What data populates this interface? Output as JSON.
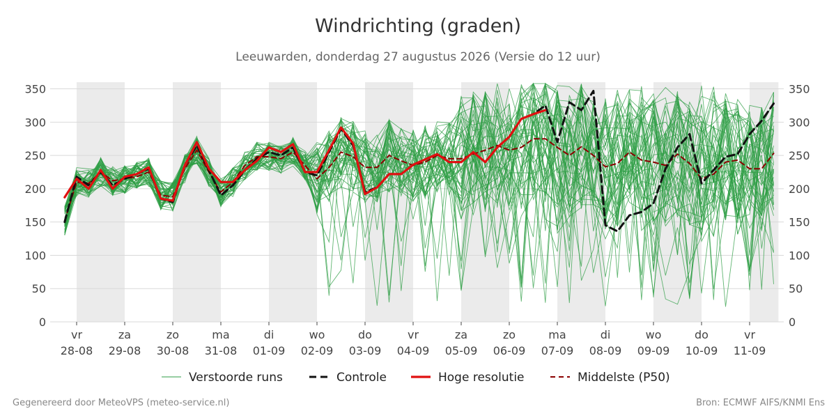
{
  "title": "Windrichting (graden)",
  "subtitle": "Leeuwarden, donderdag 27 augustus 2026 (Versie do 12 uur)",
  "footer_left": "Gegenereerd door MeteoVPS (meteo-service.nl)",
  "footer_right": "Bron: ECMWF AIFS/KNMI Ens",
  "colors": {
    "ensemble": "#2e9e44",
    "control": "#111111",
    "hires": "#e01010",
    "median": "#8b0000",
    "weekend_band": "#ebebeb",
    "grid": "#d9d9d9",
    "text": "#444444"
  },
  "chart_data": {
    "type": "line",
    "ylim": [
      0,
      360
    ],
    "y_ticks": [
      0,
      50,
      100,
      150,
      200,
      250,
      300,
      350
    ],
    "x_start_day": -0.25,
    "x_end_day": 14.6,
    "x_ticks": [
      {
        "day": 0,
        "dow": "vr",
        "date": "28-08"
      },
      {
        "day": 1,
        "dow": "za",
        "date": "29-08"
      },
      {
        "day": 2,
        "dow": "zo",
        "date": "30-08"
      },
      {
        "day": 3,
        "dow": "ma",
        "date": "31-08"
      },
      {
        "day": 4,
        "dow": "di",
        "date": "01-09"
      },
      {
        "day": 5,
        "dow": "wo",
        "date": "02-09"
      },
      {
        "day": 6,
        "dow": "do",
        "date": "03-09"
      },
      {
        "day": 7,
        "dow": "vr",
        "date": "04-09"
      },
      {
        "day": 8,
        "dow": "za",
        "date": "05-09"
      },
      {
        "day": 9,
        "dow": "zo",
        "date": "06-09"
      },
      {
        "day": 10,
        "dow": "ma",
        "date": "07-09"
      },
      {
        "day": 11,
        "dow": "di",
        "date": "08-09"
      },
      {
        "day": 12,
        "dow": "wo",
        "date": "09-09"
      },
      {
        "day": 13,
        "dow": "do",
        "date": "10-09"
      },
      {
        "day": 14,
        "dow": "vr",
        "date": "11-09"
      }
    ],
    "shaded_bands": [
      [
        0,
        1
      ],
      [
        2,
        3
      ],
      [
        4,
        5
      ],
      [
        6,
        7
      ],
      [
        8,
        9
      ],
      [
        10,
        11
      ],
      [
        12,
        13
      ],
      [
        14,
        14.6
      ]
    ],
    "legend": [
      {
        "key": "ensemble",
        "label": "Verstoorde runs",
        "style": "thin"
      },
      {
        "key": "control",
        "label": "Controle",
        "style": "dashed-thick"
      },
      {
        "key": "hires",
        "label": "Hoge resolutie",
        "style": "solid-thick"
      },
      {
        "key": "median",
        "label": "Middelste (P50)",
        "style": "dashed"
      }
    ],
    "legend_position": "bottom",
    "ensemble_member_count": 50,
    "series": [
      {
        "key": "hires",
        "x": [
          -0.25,
          0,
          0.25,
          0.5,
          0.75,
          1,
          1.25,
          1.5,
          1.75,
          2,
          2.25,
          2.5,
          2.75,
          3,
          3.25,
          3.5,
          3.75,
          4,
          4.25,
          4.5,
          4.75,
          5,
          5.25,
          5.5,
          5.75,
          6,
          6.25,
          6.5,
          6.75,
          7,
          7.25,
          7.5,
          7.75,
          8,
          8.25,
          8.5,
          8.75,
          9,
          9.25,
          9.5,
          9.75
        ],
        "values": [
          187,
          215,
          200,
          228,
          200,
          218,
          222,
          232,
          185,
          182,
          235,
          270,
          230,
          210,
          210,
          228,
          242,
          262,
          255,
          267,
          225,
          225,
          258,
          292,
          268,
          192,
          202,
          222,
          222,
          236,
          244,
          252,
          240,
          240,
          255,
          240,
          262,
          278,
          305,
          312,
          318
        ]
      },
      {
        "key": "control",
        "x": [
          -0.25,
          0,
          0.25,
          0.5,
          0.75,
          1,
          1.25,
          1.5,
          1.75,
          2,
          2.25,
          2.5,
          2.75,
          3,
          3.25,
          3.5,
          3.75,
          4,
          4.25,
          4.5,
          4.75,
          5,
          5.25,
          5.5,
          5.75,
          6,
          6.25,
          6.5,
          6.75,
          7,
          7.25,
          7.5,
          7.75,
          8,
          8.25,
          8.5,
          8.75,
          9,
          9.25,
          9.5,
          9.75,
          10,
          10.25,
          10.5,
          10.75,
          11,
          11.25,
          11.5,
          11.75,
          12,
          12.25,
          12.5,
          12.75,
          13,
          13.25,
          13.5,
          13.75,
          14,
          14.25,
          14.5
        ],
        "values": [
          150,
          218,
          205,
          225,
          205,
          215,
          222,
          230,
          185,
          180,
          235,
          265,
          228,
          190,
          205,
          228,
          245,
          255,
          250,
          262,
          225,
          220,
          255,
          290,
          265,
          195,
          202,
          222,
          222,
          236,
          244,
          252,
          240,
          240,
          255,
          240,
          262,
          278,
          305,
          312,
          325,
          270,
          330,
          318,
          347,
          145,
          136,
          160,
          165,
          178,
          230,
          262,
          282,
          208,
          228,
          248,
          252,
          282,
          302,
          328
        ]
      },
      {
        "key": "median",
        "x": [
          -0.25,
          0,
          0.25,
          0.5,
          0.75,
          1,
          1.25,
          1.5,
          1.75,
          2,
          2.25,
          2.5,
          2.75,
          3,
          3.25,
          3.5,
          3.75,
          4,
          4.25,
          4.5,
          4.75,
          5,
          5.25,
          5.5,
          5.75,
          6,
          6.25,
          6.5,
          6.75,
          7,
          7.25,
          7.5,
          7.75,
          8,
          8.25,
          8.5,
          8.75,
          9,
          9.25,
          9.5,
          9.75,
          10,
          10.25,
          10.5,
          10.75,
          11,
          11.25,
          11.5,
          11.75,
          12,
          12.25,
          12.5,
          12.75,
          13,
          13.25,
          13.5,
          13.75,
          14,
          14.25,
          14.5
        ],
        "values": [
          152,
          210,
          208,
          225,
          212,
          215,
          218,
          225,
          190,
          188,
          230,
          258,
          225,
          195,
          210,
          235,
          248,
          248,
          245,
          255,
          235,
          215,
          232,
          255,
          248,
          232,
          232,
          250,
          242,
          235,
          240,
          250,
          245,
          245,
          252,
          258,
          265,
          258,
          262,
          275,
          275,
          262,
          250,
          263,
          250,
          233,
          238,
          255,
          243,
          240,
          235,
          252,
          238,
          215,
          222,
          240,
          243,
          230,
          230,
          253
        ]
      }
    ],
    "hires_end_marker": 9.75
  }
}
